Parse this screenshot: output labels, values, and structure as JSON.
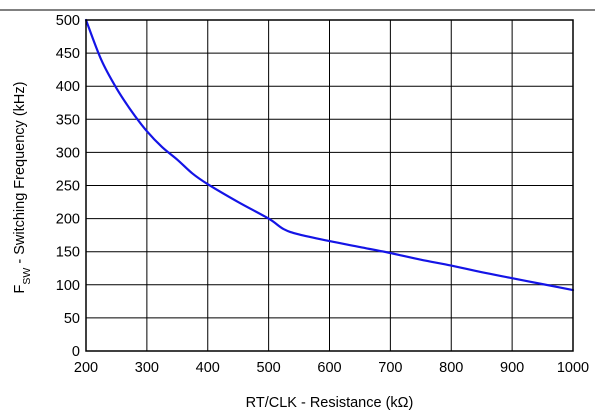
{
  "chart_data": {
    "type": "line",
    "xlabel": "RT/CLK - Resistance (kΩ)",
    "ylabel_main": "F",
    "ylabel_sub": "SW",
    "ylabel_rest": " - Switching Frequency (kHz)",
    "xlim": [
      200,
      1000
    ],
    "ylim": [
      0,
      500
    ],
    "x_ticks": [
      "200",
      "300",
      "400",
      "500",
      "600",
      "700",
      "800",
      "900",
      "1000"
    ],
    "y_ticks": [
      "0",
      "50",
      "100",
      "150",
      "200",
      "250",
      "300",
      "350",
      "400",
      "450",
      "500"
    ],
    "grid": true,
    "series": [
      {
        "color": "#1414e6",
        "x": [
          200,
          225,
          250,
          275,
          300,
          325,
          350,
          375,
          400,
          450,
          500,
          525,
          550,
          600,
          650,
          700,
          750,
          800,
          850,
          900,
          950,
          1000
        ],
        "y": [
          500,
          440,
          397,
          362,
          332,
          308,
          289,
          268,
          252,
          225,
          200,
          184,
          176,
          166,
          157,
          148,
          138,
          129,
          119,
          110,
          101,
          92
        ]
      }
    ]
  }
}
